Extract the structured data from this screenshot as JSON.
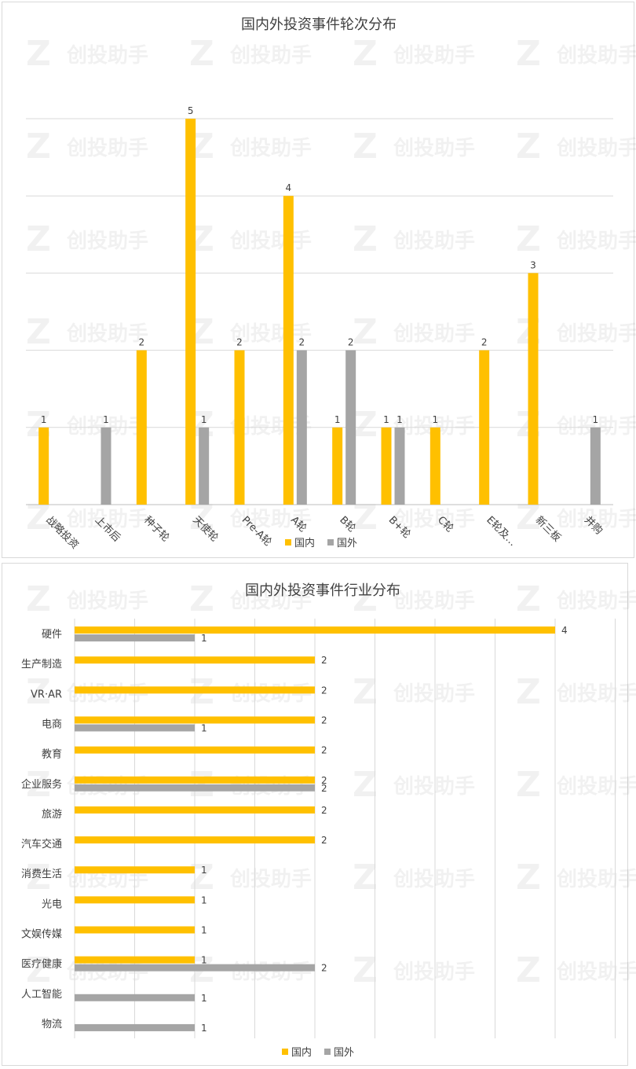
{
  "watermark": {
    "text": "创投助手",
    "logo": "Z"
  },
  "colors": {
    "domestic": "#FFC000",
    "foreign": "#A5A5A5",
    "grid": "#D9D9D9"
  },
  "chart_data": [
    {
      "type": "bar",
      "orientation": "vertical",
      "title": "国内外投资事件轮次分布",
      "categories": [
        "战略投资",
        "上市后",
        "种子轮",
        "天使轮",
        "Pre-A轮",
        "A轮",
        "B轮",
        "B+轮",
        "C轮",
        "E轮及…",
        "新三板",
        "并购"
      ],
      "series": [
        {
          "name": "国内",
          "values": [
            1,
            0,
            2,
            5,
            2,
            4,
            1,
            1,
            1,
            2,
            3,
            0
          ]
        },
        {
          "name": "国外",
          "values": [
            0,
            1,
            0,
            1,
            0,
            2,
            2,
            1,
            0,
            0,
            0,
            1
          ]
        }
      ],
      "ylim": [
        0,
        5
      ],
      "grid": true,
      "legend": "bottom"
    },
    {
      "type": "bar",
      "orientation": "horizontal",
      "title": "国内外投资事件行业分布",
      "categories": [
        "硬件",
        "生产制造",
        "VR·AR",
        "电商",
        "教育",
        "企业服务",
        "旅游",
        "汽车交通",
        "消费生活",
        "光电",
        "文娱传媒",
        "医疗健康",
        "人工智能",
        "物流"
      ],
      "series": [
        {
          "name": "国内",
          "values": [
            4,
            2,
            2,
            2,
            2,
            2,
            2,
            2,
            1,
            1,
            1,
            1,
            0,
            0
          ]
        },
        {
          "name": "国外",
          "values": [
            1,
            0,
            0,
            1,
            0,
            2,
            0,
            0,
            0,
            0,
            0,
            2,
            1,
            1
          ]
        }
      ],
      "xlim": [
        0,
        4.5
      ],
      "grid": true,
      "legend": "bottom"
    }
  ]
}
